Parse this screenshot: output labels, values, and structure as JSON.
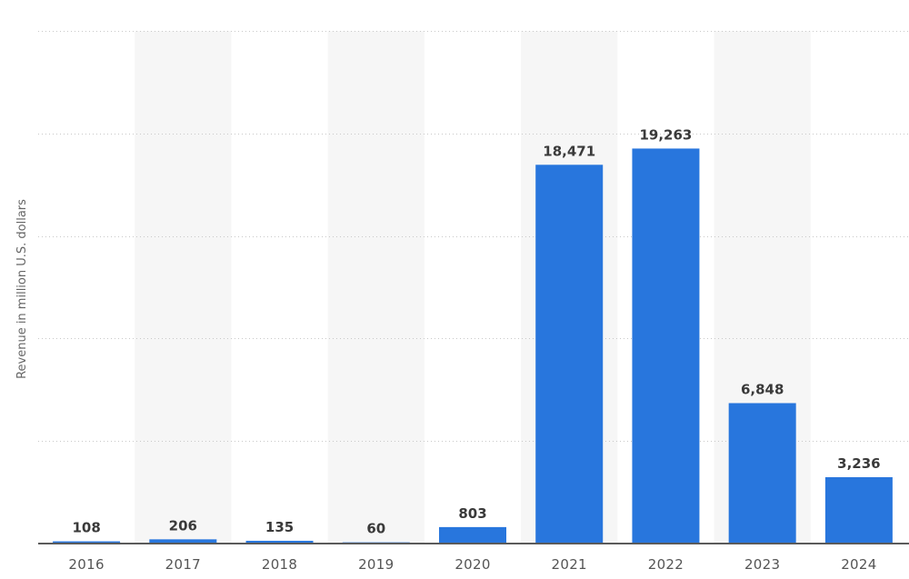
{
  "chart_data": {
    "type": "bar",
    "title": "",
    "xlabel": "",
    "ylabel": "Revenue in million U.S. dollars",
    "categories": [
      "2016",
      "2017",
      "2018",
      "2019",
      "2020",
      "2021",
      "2022",
      "2023",
      "2024"
    ],
    "values": [
      108,
      206,
      135,
      60,
      803,
      18471,
      19263,
      6848,
      3236
    ],
    "value_labels": [
      "108",
      "206",
      "135",
      "60",
      "803",
      "18,471",
      "19,263",
      "6,848",
      "3,236"
    ],
    "ylim": [
      0,
      25000
    ],
    "y_gridlines": [
      0,
      5000,
      10000,
      15000,
      20000,
      25000
    ],
    "y_tick_labels_visible": false,
    "grid": true,
    "legend": "none",
    "colors": {
      "bar": "#2876dd",
      "band": "#f6f6f6"
    }
  }
}
